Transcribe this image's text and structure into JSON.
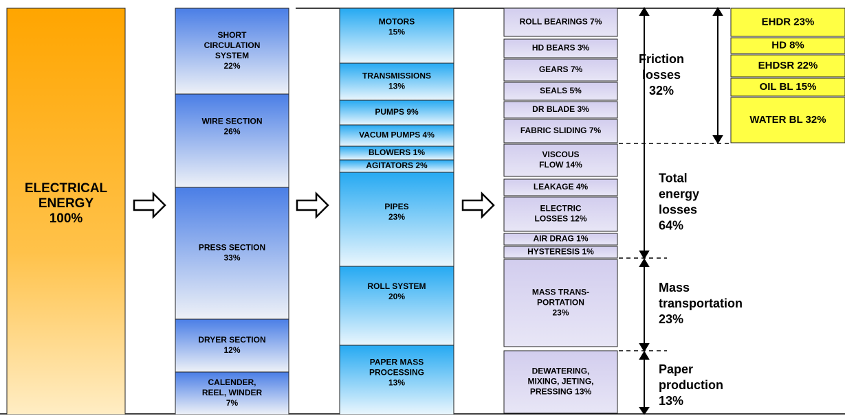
{
  "source": {
    "lines": [
      "ELECTRICAL",
      "ENERGY",
      "100%"
    ]
  },
  "columns": [
    {
      "boxes": [
        {
          "lines": [
            "SHORT",
            "CIRCULATION",
            "SYSTEM",
            "22%"
          ]
        },
        {
          "lines": [
            "WIRE SECTION",
            "26%"
          ]
        },
        {
          "lines": [
            "PRESS SECTION",
            "33%"
          ]
        },
        {
          "lines": [
            "DRYER SECTION",
            "12%"
          ]
        },
        {
          "lines": [
            "CALENDER,",
            "REEL, WINDER",
            "7%"
          ]
        }
      ]
    },
    {
      "boxes": [
        {
          "lines": [
            "MOTORS",
            "15%"
          ]
        },
        {
          "lines": [
            "TRANSMISSIONS",
            "13%"
          ]
        },
        {
          "lines": [
            "PUMPS 9%"
          ]
        },
        {
          "lines": [
            "VACUM PUMPS 4%"
          ]
        },
        {
          "lines": [
            "BLOWERS 1%"
          ]
        },
        {
          "lines": [
            "AGITATORS 2%"
          ]
        },
        {
          "lines": [
            "PIPES",
            "23%"
          ]
        },
        {
          "lines": [
            "ROLL SYSTEM",
            "20%"
          ]
        },
        {
          "lines": [
            "PAPER MASS",
            "PROCESSING",
            "13%"
          ]
        }
      ]
    },
    {
      "boxes": [
        {
          "lines": [
            "ROLL BEARINGS 7%"
          ]
        },
        {
          "lines": [
            "HD BEARS 3%"
          ]
        },
        {
          "lines": [
            "GEARS  7%"
          ]
        },
        {
          "lines": [
            "SEALS 5%"
          ]
        },
        {
          "lines": [
            "DR BLADE 3%"
          ]
        },
        {
          "lines": [
            "FABRIC SLIDING 7%"
          ]
        },
        {
          "lines": [
            "VISCOUS",
            "FLOW 14%"
          ]
        },
        {
          "lines": [
            "LEAKAGE 4%"
          ]
        },
        {
          "lines": [
            "ELECTRIC",
            "LOSSES 12%"
          ]
        },
        {
          "lines": [
            "AIR DRAG 1%"
          ]
        },
        {
          "lines": [
            "HYSTERESIS  1%"
          ]
        },
        {
          "lines": [
            "MASS TRANS-",
            "PORTATION",
            "23%"
          ]
        },
        {
          "lines": [
            "DEWATERING,",
            "MIXING, JETING,",
            "PRESSING 13%"
          ]
        }
      ]
    },
    {
      "boxes": [
        {
          "lines": [
            "EHDR 23%"
          ]
        },
        {
          "lines": [
            "HD 8%"
          ]
        },
        {
          "lines": [
            "EHDSR 22%"
          ]
        },
        {
          "lines": [
            "OIL BL 15%"
          ]
        },
        {
          "lines": [
            "WATER BL 32%"
          ]
        }
      ]
    }
  ],
  "annotations": [
    {
      "lines": [
        "Friction",
        "losses",
        "32%"
      ]
    },
    {
      "lines": [
        "Total",
        "energy",
        "losses",
        "64%"
      ]
    },
    {
      "lines": [
        "Mass",
        "transportation",
        "23%"
      ]
    },
    {
      "lines": [
        "Paper",
        "production",
        "13%"
      ]
    }
  ]
}
